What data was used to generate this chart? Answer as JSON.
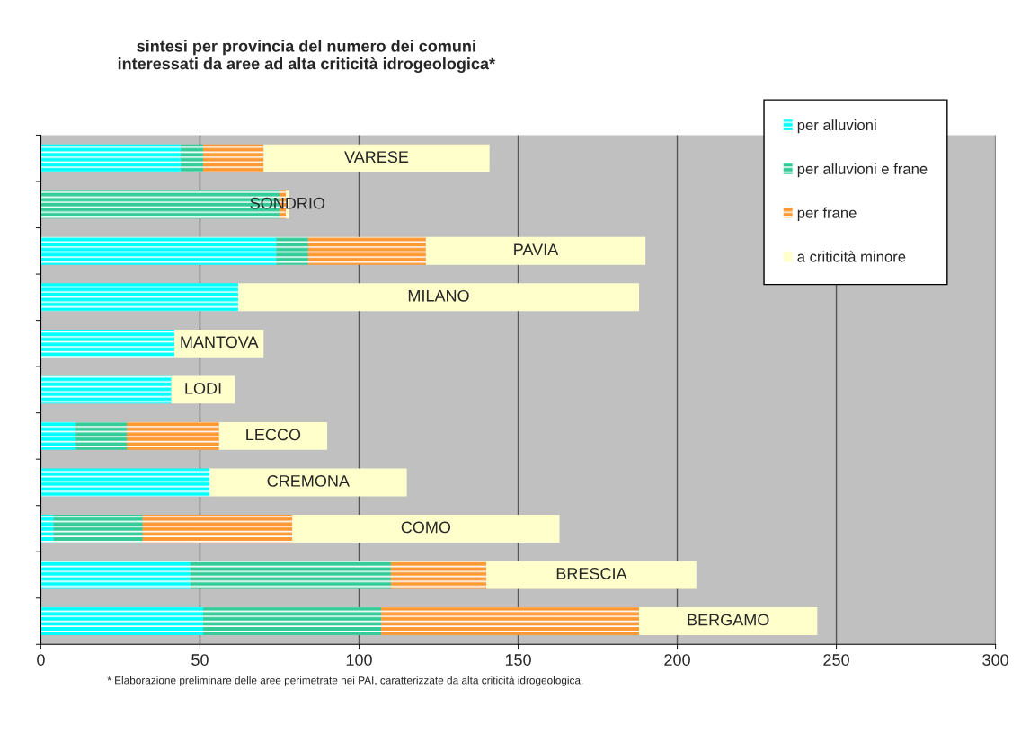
{
  "chart_data": {
    "type": "bar",
    "orientation": "horizontal",
    "stacked": true,
    "title": "sintesi per provincia del numero dei comuni\ninteressati da aree ad alta criticità idrogeologica*",
    "categories": [
      "VARESE",
      "SONDRIO",
      "PAVIA",
      "MILANO",
      "MANTOVA",
      "LODI",
      "LECCO",
      "CREMONA",
      "COMO",
      "BRESCIA",
      "BERGAMO"
    ],
    "series": [
      {
        "name": "per alluvioni",
        "color": "#00ffff",
        "values": [
          44,
          0,
          74,
          62,
          42,
          41,
          11,
          53,
          4,
          47,
          51
        ]
      },
      {
        "name": "per alluvioni e frane",
        "color": "#33cc99",
        "values": [
          7,
          75,
          10,
          0,
          0,
          0,
          16,
          0,
          28,
          63,
          56
        ]
      },
      {
        "name": "per frane",
        "color": "#ff9933",
        "values": [
          19,
          2,
          37,
          0,
          0,
          0,
          29,
          0,
          47,
          30,
          81
        ]
      },
      {
        "name": "a criticità minore",
        "color": "#ffffcc",
        "values": [
          71,
          1,
          69,
          126,
          28,
          20,
          34,
          62,
          84,
          66,
          56
        ]
      }
    ],
    "xlim": [
      0,
      300
    ],
    "xticks": [
      0,
      50,
      100,
      150,
      200,
      250,
      300
    ],
    "grid": "x",
    "legend": "top right",
    "tick_labels": "x",
    "annotations": [
      "* Elaborazione preliminare delle aree perimetrate nei PAI, caratterizzate da alta criticità idrogeologica."
    ]
  }
}
